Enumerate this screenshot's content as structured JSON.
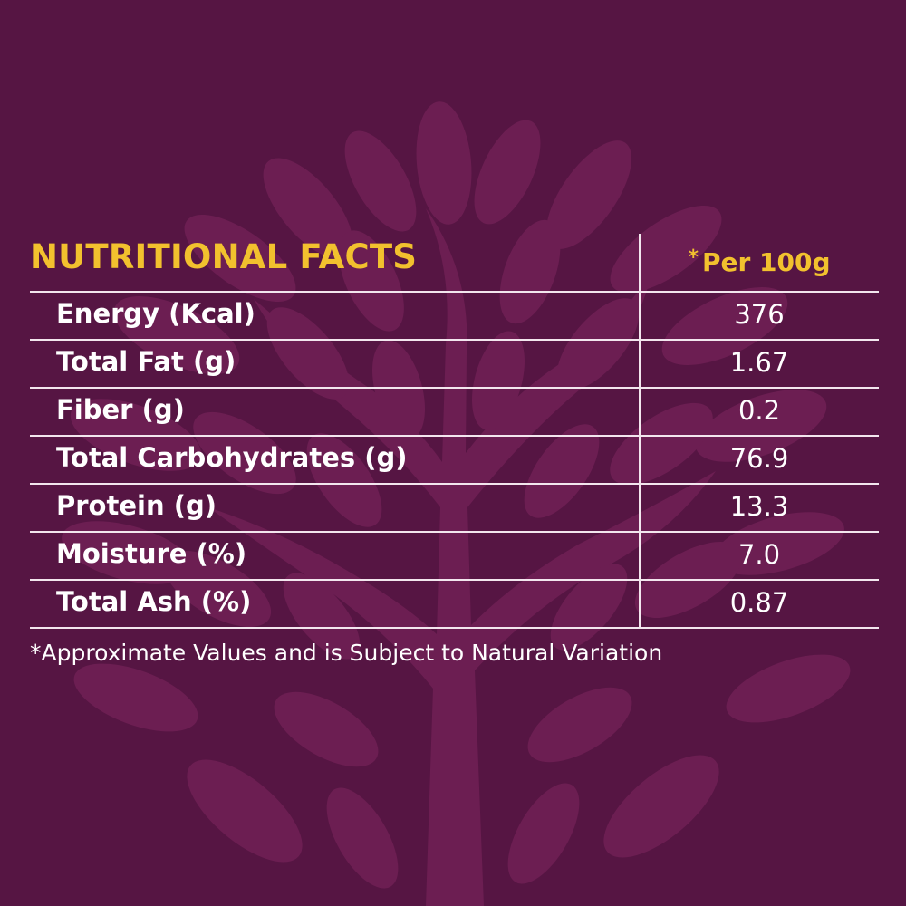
{
  "table": {
    "title": "NUTRITIONAL FACTS",
    "unit_marker": "*",
    "unit_label": "Per 100g",
    "rows": [
      {
        "label": "Energy (Kcal)",
        "value": "376"
      },
      {
        "label": "Total Fat (g)",
        "value": "1.67"
      },
      {
        "label": "Fiber (g)",
        "value": "0.2"
      },
      {
        "label": "Total Carbohydrates (g)",
        "value": "76.9"
      },
      {
        "label": "Protein (g)",
        "value": "13.3"
      },
      {
        "label": "Moisture (%)",
        "value": "7.0"
      },
      {
        "label": "Total Ash (%)",
        "value": "0.87"
      }
    ]
  },
  "footnote": "*Approximate Values and is Subject to Natural Variation",
  "colors": {
    "background": "#561543",
    "tree": "#6c1e52",
    "heading": "#f2c12e",
    "text": "#ffffff",
    "lines": "#f3e6ee"
  },
  "icons": {
    "background": "tree-watermark-icon"
  }
}
